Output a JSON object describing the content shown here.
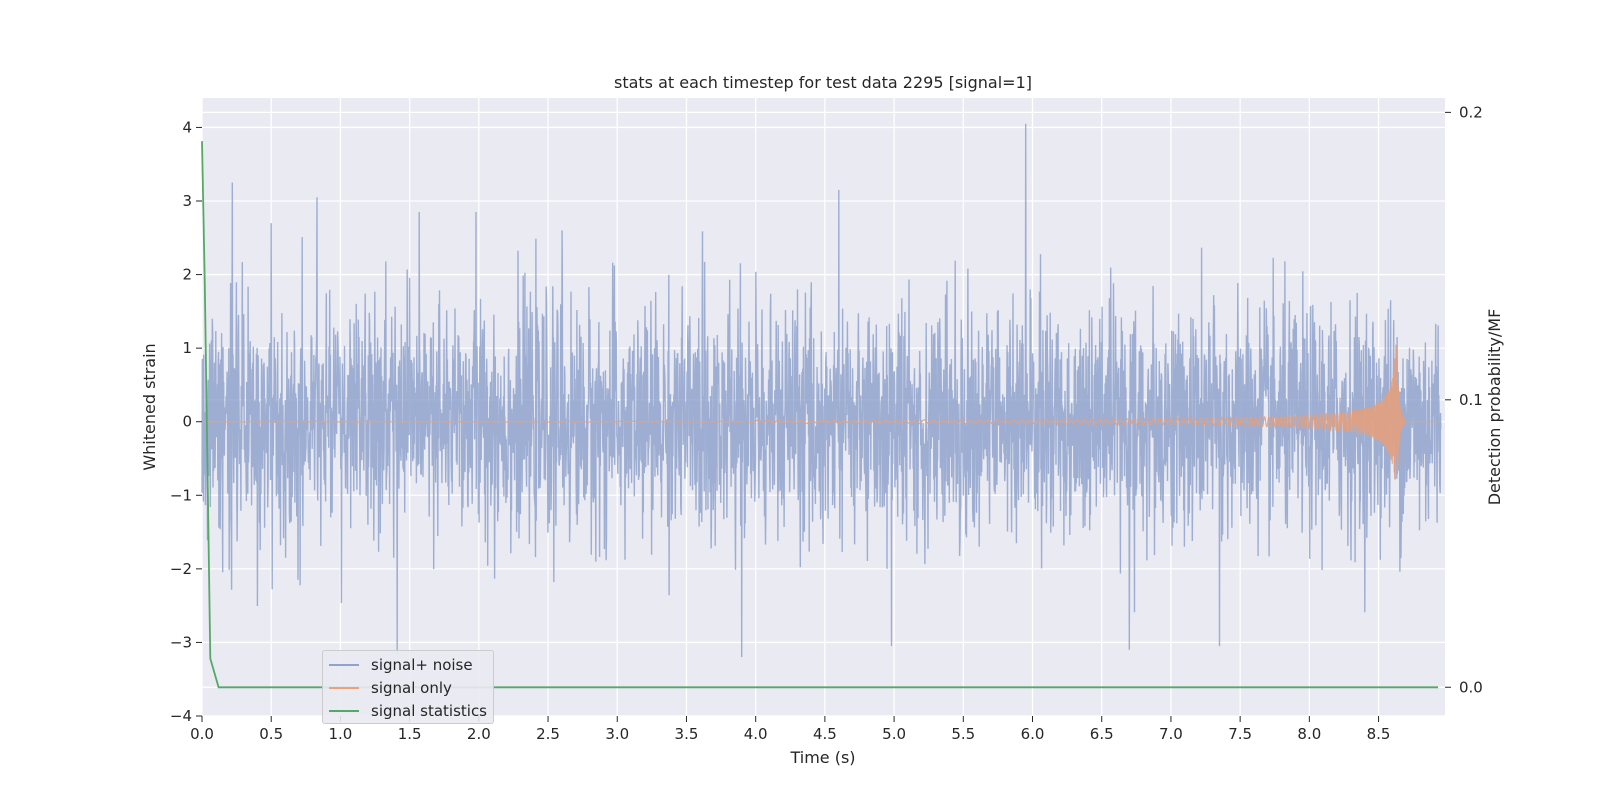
{
  "chart_data": {
    "type": "line",
    "title": "stats at each timestep for test data 2295 [signal=1]",
    "xlabel": "Time (s)",
    "ylabel": "Whitened strain",
    "ylabel_right": "Detection probability/MF",
    "xlim": [
      0,
      8.98
    ],
    "ylim": [
      -4,
      4.4
    ],
    "ylim_right": [
      -0.01,
      0.205
    ],
    "xticks": [
      0.0,
      0.5,
      1.0,
      1.5,
      2.0,
      2.5,
      3.0,
      3.5,
      4.0,
      4.5,
      5.0,
      5.5,
      6.0,
      6.5,
      7.0,
      7.5,
      8.0,
      8.5
    ],
    "xtick_labels": [
      "0.0",
      "0.5",
      "1.0",
      "1.5",
      "2.0",
      "2.5",
      "3.0",
      "3.5",
      "4.0",
      "4.5",
      "5.0",
      "5.5",
      "6.0",
      "6.5",
      "7.0",
      "7.5",
      "8.0",
      "8.5"
    ],
    "yticks": [
      4,
      3,
      2,
      1,
      0,
      -1,
      -2,
      -3,
      -4
    ],
    "ytick_labels": [
      "4",
      "3",
      "2",
      "1",
      "0",
      "−1",
      "−2",
      "−3",
      "−4"
    ],
    "yticks_right": [
      0.2,
      0.1,
      0.0
    ],
    "ytick_labels_right": [
      "0.2",
      "0.1",
      "0.0"
    ],
    "grid": true,
    "legend_position": "lower-left",
    "series": [
      {
        "name": "signal+ noise",
        "axis": "left",
        "color": "#8fa3cc",
        "description": "Gaussian-like whitened noise, roughly between -2.5 and 2.5 with peaks near 4.0 at t=5.95s",
        "peaks": [
          {
            "x": 0.22,
            "y": 3.25
          },
          {
            "x": 0.5,
            "y": 2.7
          },
          {
            "x": 0.83,
            "y": 3.05
          },
          {
            "x": 1.57,
            "y": 2.85
          },
          {
            "x": 1.98,
            "y": 2.85
          },
          {
            "x": 2.6,
            "y": 2.6
          },
          {
            "x": 4.6,
            "y": 3.15
          },
          {
            "x": 4.98,
            "y": 2.8
          },
          {
            "x": 5.95,
            "y": 4.05
          },
          {
            "x": 1.41,
            "y": -3.15
          },
          {
            "x": 3.9,
            "y": -3.2
          },
          {
            "x": 4.98,
            "y": -3.05
          },
          {
            "x": 6.7,
            "y": -3.1
          },
          {
            "x": 7.35,
            "y": -3.05
          }
        ]
      },
      {
        "name": "signal only",
        "axis": "left",
        "color": "#dd8452",
        "description": "chirp signal, near zero until about 5.0 s, growing amplitude, peak about 1.2 at t=8.63 s then ringdown to 0",
        "chirp_start": 5.0,
        "merger_time": 8.63,
        "peak_amplitude": 1.2
      },
      {
        "name": "signal statistics",
        "axis": "right",
        "color": "#55a868",
        "x": [
          0.0,
          0.02,
          0.06,
          0.12,
          8.93
        ],
        "y": [
          0.19,
          0.14,
          0.01,
          0.0,
          0.0
        ]
      }
    ]
  }
}
